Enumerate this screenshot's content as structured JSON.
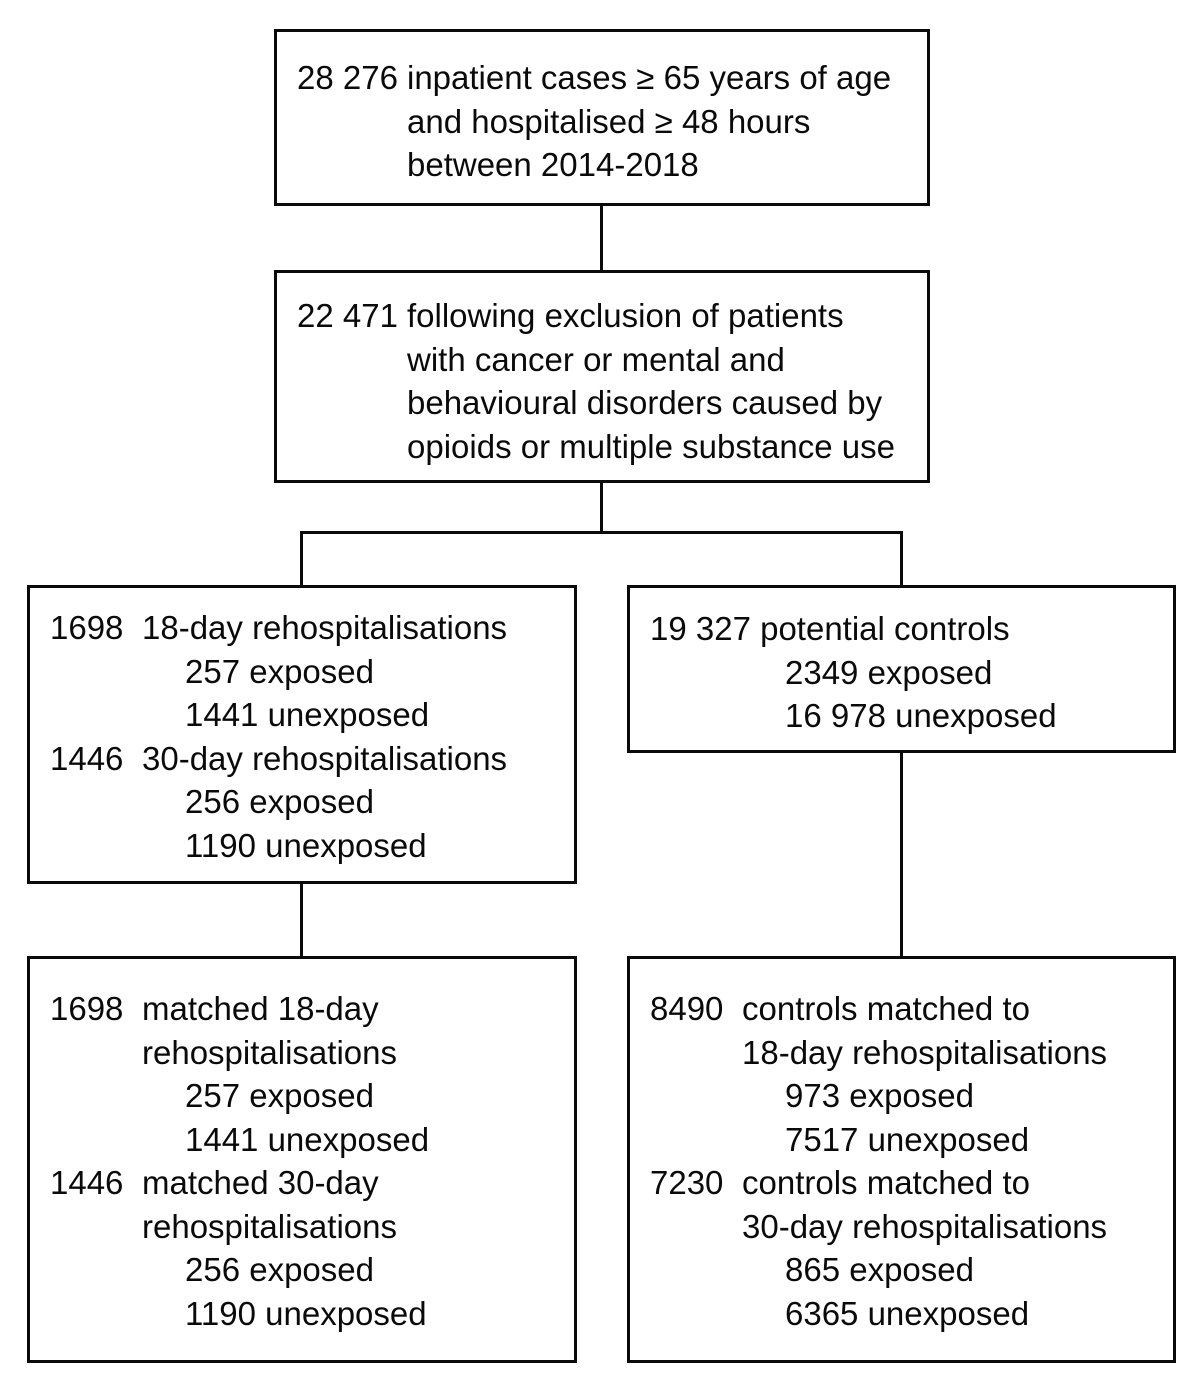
{
  "colors": {
    "background": "#ffffff",
    "box_border": "#0a0a0a",
    "text": "#0a0a0a"
  },
  "flowchart": {
    "box_top": {
      "count": "28 276",
      "line1": "inpatient cases ≥ 65 years of age",
      "line2": "and hospitalised ≥ 48 hours",
      "line3": "between 2014-2018"
    },
    "box_exclusion": {
      "count": "22 471",
      "line1": "following exclusion of patients",
      "line2": "with cancer or mental and",
      "line3": "behavioural disorders caused by",
      "line4": "opioids or multiple substance use"
    },
    "box_cases": {
      "row1_count": "1698",
      "row1_label": "18-day rehospitalisations",
      "row1_exposed": "257 exposed",
      "row1_unexposed": "1441 unexposed",
      "row2_count": "1446",
      "row2_label": "30-day rehospitalisations",
      "row2_exposed": "256 exposed",
      "row2_unexposed": "1190 unexposed"
    },
    "box_controls": {
      "line1": "19 327 potential controls",
      "exposed": "2349 exposed",
      "unexposed": "16 978 unexposed"
    },
    "box_matched_cases": {
      "row1_count": "1698",
      "row1_label1": "matched 18-day",
      "row1_label2": "rehospitalisations",
      "row1_exposed": "257 exposed",
      "row1_unexposed": "1441 unexposed",
      "row2_count": "1446",
      "row2_label1": "matched 30-day",
      "row2_label2": "rehospitalisations",
      "row2_exposed": "256 exposed",
      "row2_unexposed": "1190 unexposed"
    },
    "box_matched_controls": {
      "row1_count": "8490",
      "row1_label1": "controls matched to",
      "row1_label2": "18-day rehospitalisations",
      "row1_exposed": "973 exposed",
      "row1_unexposed": "7517 unexposed",
      "row2_count": "7230",
      "row2_label1": "controls matched to",
      "row2_label2": "30-day rehospitalisations",
      "row2_exposed": "865 exposed",
      "row2_unexposed": "6365 unexposed"
    }
  }
}
